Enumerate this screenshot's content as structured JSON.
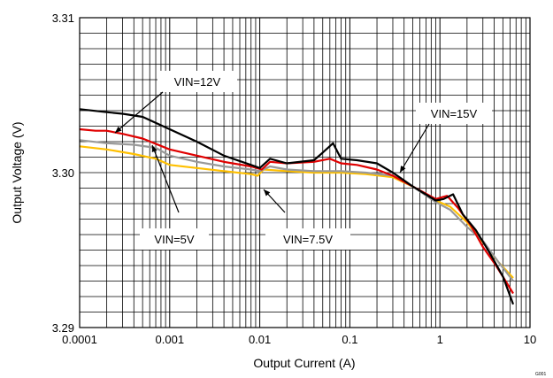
{
  "chart_data": {
    "type": "line",
    "xlabel": "Output Current (A)",
    "ylabel": "Output Voltage (V)",
    "x_scale": "log",
    "xlim": [
      0.0001,
      10
    ],
    "ylim": [
      3.29,
      3.31
    ],
    "x_ticks": [
      {
        "value": 0.0001,
        "label": "0.0001"
      },
      {
        "value": 0.001,
        "label": "0.001"
      },
      {
        "value": 0.01,
        "label": "0.01"
      },
      {
        "value": 0.1,
        "label": "0.1"
      },
      {
        "value": 1,
        "label": "1"
      },
      {
        "value": 10,
        "label": "10"
      }
    ],
    "y_ticks": [
      {
        "value": 3.29,
        "label": "3.29"
      },
      {
        "value": 3.3,
        "label": "3.30"
      },
      {
        "value": 3.31,
        "label": "3.31"
      }
    ],
    "grid": true,
    "legend": "none",
    "figure_code": "G001",
    "series": [
      {
        "name": "VIN=12V",
        "color": "#e00000",
        "points": [
          [
            0.0001,
            3.3028
          ],
          [
            0.00015,
            3.3027
          ],
          [
            0.0002,
            3.3027
          ],
          [
            0.0003,
            3.3025
          ],
          [
            0.0005,
            3.3022
          ],
          [
            0.001,
            3.3015
          ],
          [
            0.002,
            3.3011
          ],
          [
            0.004,
            3.3007
          ],
          [
            0.008,
            3.3004
          ],
          [
            0.0105,
            3.3002
          ],
          [
            0.013,
            3.3007
          ],
          [
            0.02,
            3.3006
          ],
          [
            0.04,
            3.3007
          ],
          [
            0.06,
            3.3009
          ],
          [
            0.08,
            3.3006
          ],
          [
            0.12,
            3.3005
          ],
          [
            0.2,
            3.3002
          ],
          [
            0.3,
            3.2998
          ],
          [
            0.5,
            3.2991
          ],
          [
            0.9,
            3.2983
          ],
          [
            1.2,
            3.2985
          ],
          [
            1.6,
            3.2977
          ],
          [
            2.2,
            3.2966
          ],
          [
            3,
            3.2952
          ],
          [
            4.2,
            3.294
          ],
          [
            5.5,
            3.2929
          ],
          [
            6.5,
            3.2922
          ]
        ]
      },
      {
        "name": "VIN=15V",
        "color": "#000000",
        "points": [
          [
            0.0001,
            3.3041
          ],
          [
            0.0002,
            3.3039
          ],
          [
            0.0003,
            3.3038
          ],
          [
            0.0005,
            3.3036
          ],
          [
            0.001,
            3.3028
          ],
          [
            0.002,
            3.302
          ],
          [
            0.004,
            3.3011
          ],
          [
            0.008,
            3.3005
          ],
          [
            0.01,
            3.3003
          ],
          [
            0.013,
            3.3009
          ],
          [
            0.02,
            3.3006
          ],
          [
            0.04,
            3.3008
          ],
          [
            0.05,
            3.3013
          ],
          [
            0.065,
            3.3019
          ],
          [
            0.08,
            3.3009
          ],
          [
            0.12,
            3.3008
          ],
          [
            0.2,
            3.3006
          ],
          [
            0.3,
            3.3
          ],
          [
            0.5,
            3.2991
          ],
          [
            0.9,
            3.2982
          ],
          [
            1.1,
            3.2983
          ],
          [
            1.4,
            3.2986
          ],
          [
            1.8,
            3.2973
          ],
          [
            2.5,
            3.2963
          ],
          [
            3.5,
            3.2949
          ],
          [
            5,
            3.2933
          ],
          [
            6.5,
            3.2915
          ]
        ]
      },
      {
        "name": "VIN=5V",
        "color": "#999999",
        "points": [
          [
            0.0001,
            3.3021
          ],
          [
            0.0002,
            3.3019
          ],
          [
            0.0004,
            3.3018
          ],
          [
            0.0007,
            3.3016
          ],
          [
            0.001,
            3.3011
          ],
          [
            0.002,
            3.3007
          ],
          [
            0.004,
            3.3004
          ],
          [
            0.008,
            3.3002
          ],
          [
            0.01,
            3.3001
          ],
          [
            0.013,
            3.3004
          ],
          [
            0.02,
            3.3002
          ],
          [
            0.04,
            3.3001
          ],
          [
            0.08,
            3.3001
          ],
          [
            0.15,
            3.3
          ],
          [
            0.3,
            3.2998
          ],
          [
            0.5,
            3.2991
          ],
          [
            0.9,
            3.2981
          ],
          [
            1.3,
            3.2976
          ],
          [
            2,
            3.2965
          ],
          [
            3,
            3.2956
          ],
          [
            4.5,
            3.2942
          ],
          [
            6.5,
            3.293
          ]
        ]
      },
      {
        "name": "VIN=7.5V",
        "color": "#ffc000",
        "points": [
          [
            0.0001,
            3.3017
          ],
          [
            0.0002,
            3.3015
          ],
          [
            0.0004,
            3.3012
          ],
          [
            0.0007,
            3.3009
          ],
          [
            0.001,
            3.3005
          ],
          [
            0.002,
            3.3003
          ],
          [
            0.004,
            3.3001
          ],
          [
            0.008,
            3.2999
          ],
          [
            0.0095,
            3.2998
          ],
          [
            0.011,
            3.3002
          ],
          [
            0.02,
            3.3001
          ],
          [
            0.04,
            3.3
          ],
          [
            0.08,
            3.3
          ],
          [
            0.15,
            3.2999
          ],
          [
            0.3,
            3.2997
          ],
          [
            0.5,
            3.2991
          ],
          [
            0.9,
            3.2982
          ],
          [
            1.3,
            3.2978
          ],
          [
            2,
            3.2968
          ],
          [
            3,
            3.2955
          ],
          [
            4.5,
            3.2942
          ],
          [
            6.5,
            3.2932
          ]
        ]
      }
    ],
    "annotations": [
      {
        "text": "VIN=12V",
        "series": "VIN=12V"
      },
      {
        "text": "VIN=15V",
        "series": "VIN=15V"
      },
      {
        "text": "VIN=5V",
        "series": "VIN=5V"
      },
      {
        "text": "VIN=7.5V",
        "series": "VIN=7.5V"
      }
    ]
  }
}
